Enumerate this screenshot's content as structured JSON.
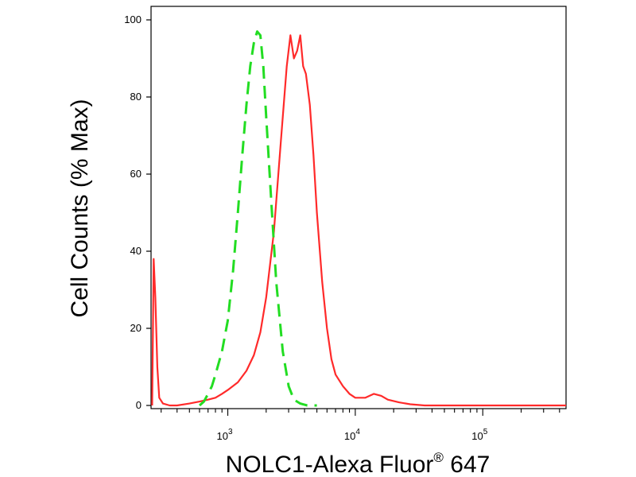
{
  "chart_data": {
    "type": "line",
    "title": "",
    "xlabel": "NOLC1-Alexa Fluor",
    "xlabel_superscript": "®",
    "xlabel_suffix": " 647",
    "ylabel": "Cell Counts (% Max)",
    "x_scale": "log",
    "xlim": [
      250,
      450000
    ],
    "ylim": [
      0,
      100
    ],
    "y_ticks": [
      0,
      20,
      40,
      60,
      80,
      100
    ],
    "x_ticks": [
      {
        "value": 1000,
        "base": "10",
        "exp": "3"
      },
      {
        "value": 10000,
        "base": "10",
        "exp": "4"
      },
      {
        "value": 100000,
        "base": "10",
        "exp": "5"
      }
    ],
    "grid": false,
    "legend": "none",
    "series": [
      {
        "color": "#ff2a2a",
        "style": "solid",
        "x": [
          255,
          262,
          270,
          280,
          290,
          310,
          350,
          400,
          500,
          600,
          700,
          800,
          900,
          1000,
          1200,
          1400,
          1600,
          1800,
          2000,
          2300,
          2600,
          2900,
          3100,
          3300,
          3500,
          3700,
          3900,
          4100,
          4400,
          4700,
          5000,
          5500,
          6000,
          6500,
          7000,
          8000,
          9000,
          10000,
          12000,
          14000,
          16000,
          18000,
          22000,
          27000,
          35000,
          50000,
          100000,
          200000,
          450000
        ],
        "y": [
          0,
          38,
          28,
          10,
          2,
          0.5,
          0,
          0,
          0.5,
          1,
          1.5,
          2,
          3,
          4,
          6,
          9,
          13,
          19,
          28,
          45,
          68,
          88,
          96,
          90,
          92,
          96,
          88,
          86,
          78,
          65,
          50,
          32,
          20,
          12,
          8,
          5,
          3,
          2,
          2,
          3,
          2.5,
          1.5,
          0.8,
          0.3,
          0,
          0,
          0,
          0,
          0
        ]
      },
      {
        "color": "#22dd22",
        "style": "dashed",
        "x": [
          600,
          650,
          700,
          750,
          800,
          900,
          1000,
          1100,
          1200,
          1300,
          1400,
          1500,
          1600,
          1700,
          1800,
          1900,
          2000,
          2200,
          2400,
          2700,
          3000,
          3300,
          3700,
          4200,
          5000
        ],
        "y": [
          0,
          1,
          3,
          5,
          8,
          14,
          22,
          35,
          50,
          65,
          78,
          88,
          94,
          97,
          96,
          88,
          75,
          52,
          32,
          14,
          5,
          1.5,
          0.5,
          0,
          0
        ]
      }
    ]
  }
}
